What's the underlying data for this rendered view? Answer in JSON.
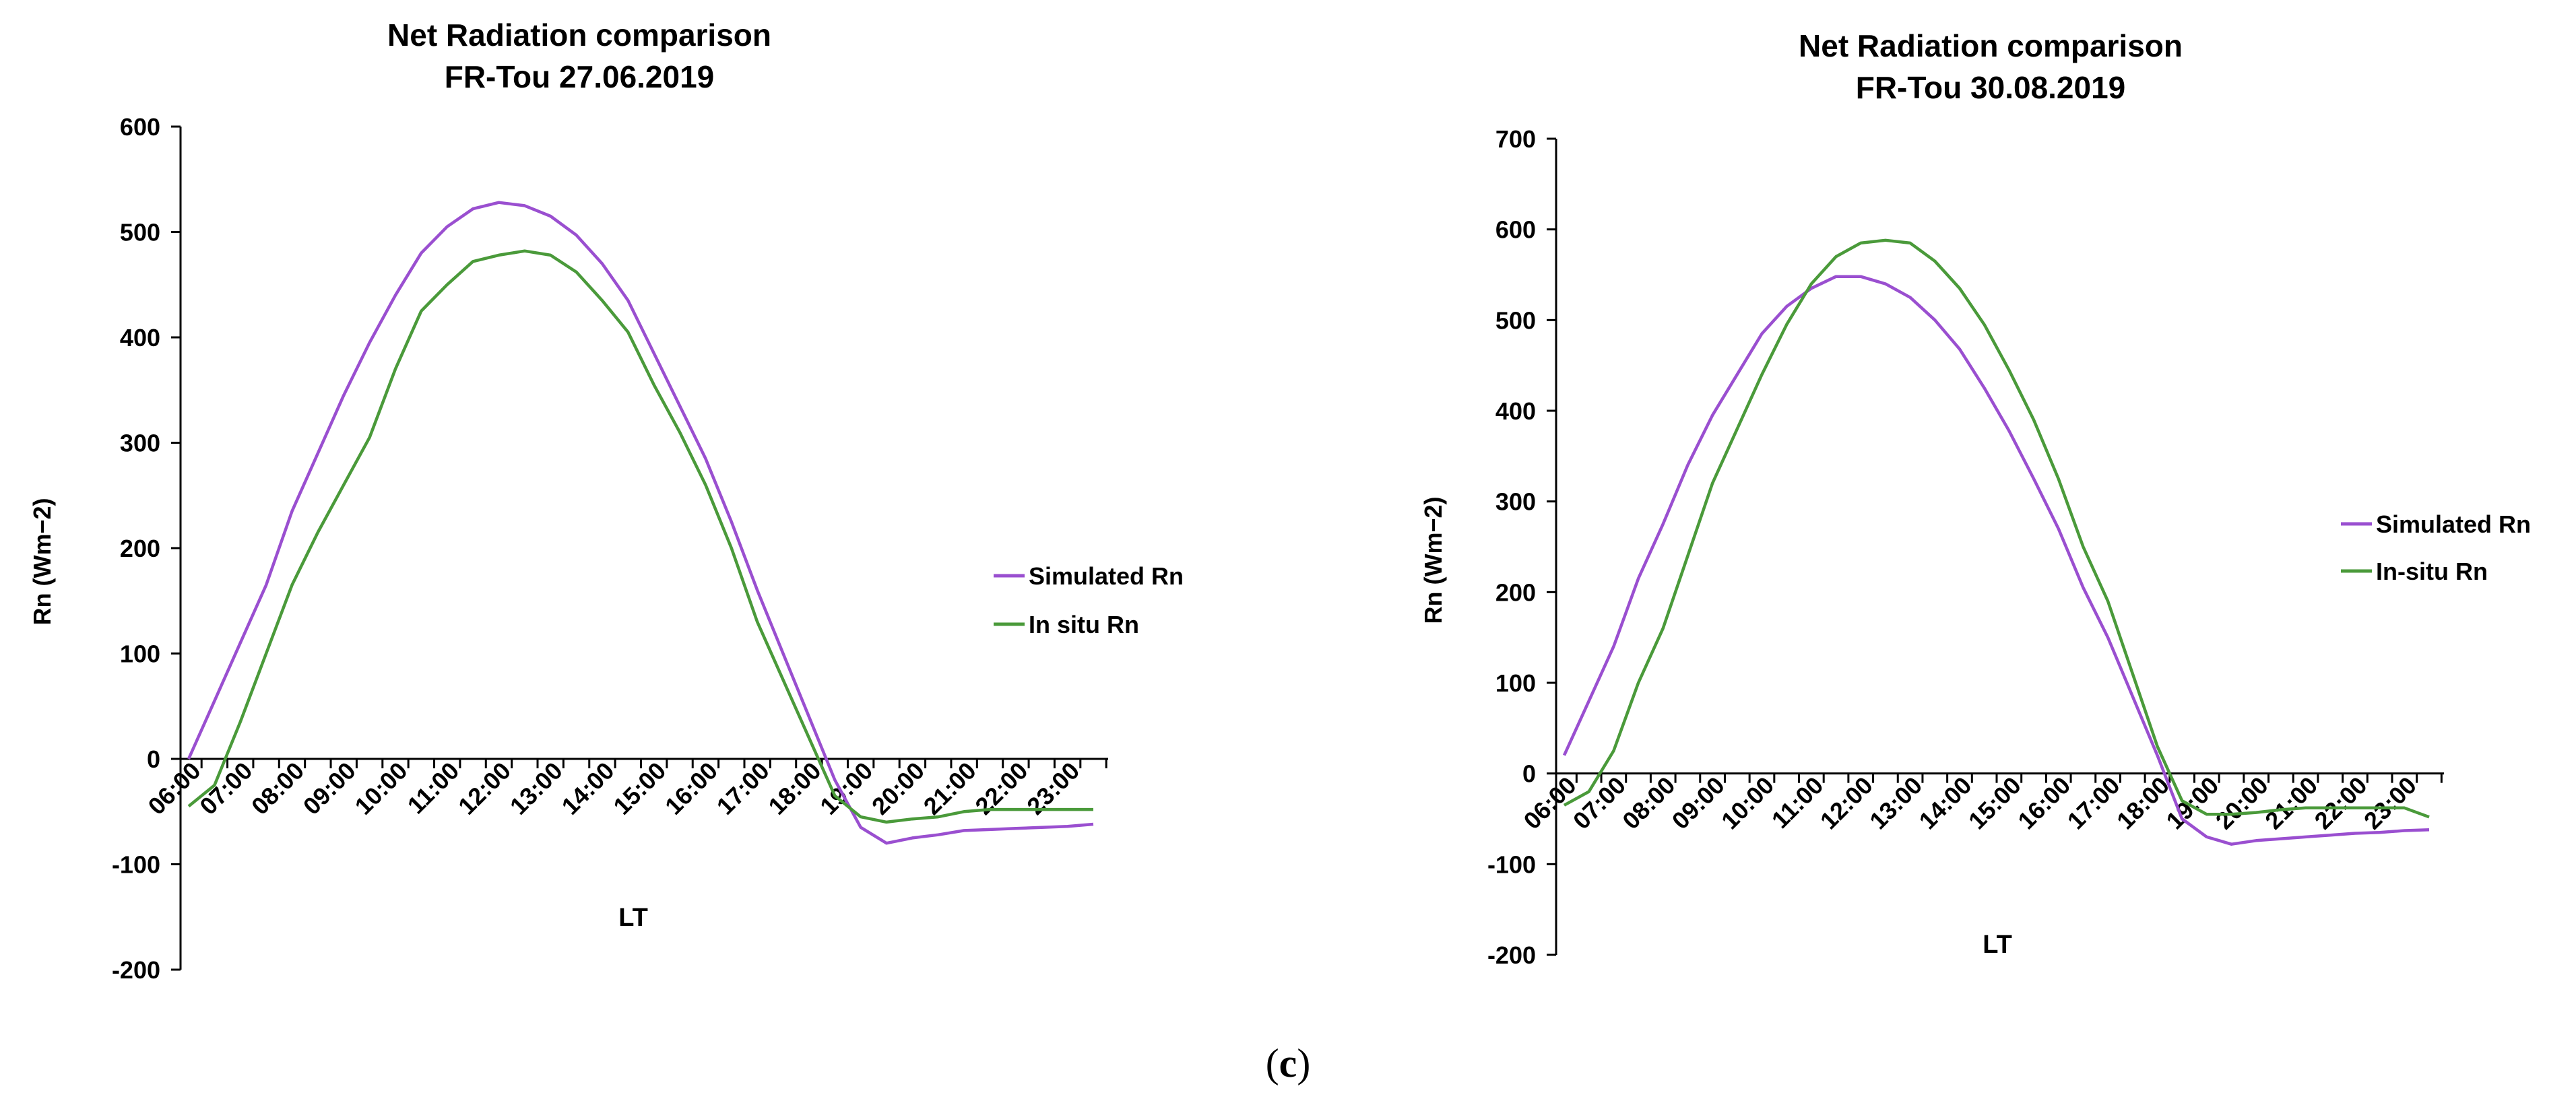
{
  "colors": {
    "simulated": "#9a4fd0",
    "insitu": "#4a9a3a",
    "axis": "#000000"
  },
  "chart_data": [
    {
      "type": "line",
      "title": "Net Radiation comparison",
      "subtitle": "FR-Tou 27.06.2019",
      "xlabel": "LT",
      "ylabel": "Rn (Wm−2)",
      "ylim": [
        -200,
        600
      ],
      "yticks": [
        -200,
        -100,
        0,
        100,
        200,
        300,
        400,
        500,
        600
      ],
      "categories": [
        "06:00",
        "07:00",
        "08:00",
        "09:00",
        "10:00",
        "11:00",
        "12:00",
        "13:00",
        "14:00",
        "15:00",
        "16:00",
        "17:00",
        "18:00",
        "19:00",
        "20:00",
        "21:00",
        "22:00",
        "23:00"
      ],
      "x": [
        6,
        6.5,
        7,
        7.5,
        8,
        8.5,
        9,
        9.5,
        10,
        10.5,
        11,
        11.5,
        12,
        12.5,
        13,
        13.5,
        14,
        14.5,
        15,
        15.5,
        16,
        16.5,
        17,
        17.5,
        18,
        18.5,
        19,
        19.5,
        20,
        20.5,
        21,
        21.5,
        22,
        22.5,
        23,
        23.5
      ],
      "series": [
        {
          "name": "Simulated Rn",
          "values": [
            0,
            55,
            110,
            165,
            235,
            290,
            345,
            395,
            440,
            480,
            505,
            522,
            528,
            525,
            515,
            497,
            470,
            435,
            385,
            335,
            285,
            225,
            160,
            100,
            40,
            -20,
            -65,
            -80,
            -75,
            -72,
            -68,
            -67,
            -66,
            -65,
            -64,
            -62
          ]
        },
        {
          "name": "In situ Rn",
          "values": [
            -45,
            -25,
            35,
            100,
            165,
            215,
            260,
            305,
            370,
            425,
            450,
            472,
            478,
            482,
            478,
            462,
            435,
            405,
            355,
            310,
            260,
            200,
            130,
            75,
            20,
            -35,
            -55,
            -60,
            -57,
            -55,
            -50,
            -48,
            -48,
            -48,
            -48,
            -48
          ]
        }
      ],
      "legend": [
        "Simulated Rn",
        "In situ Rn"
      ],
      "legend_position": "right"
    },
    {
      "type": "line",
      "title": "Net Radiation comparison",
      "subtitle": "FR-Tou 30.08.2019",
      "xlabel": "LT",
      "ylabel": "Rn (Wm−2)",
      "ylim": [
        -200,
        700
      ],
      "yticks": [
        -200,
        -100,
        0,
        100,
        200,
        300,
        400,
        500,
        600,
        700
      ],
      "categories": [
        "06:00",
        "07:00",
        "08:00",
        "09:00",
        "10:00",
        "11:00",
        "12:00",
        "13:00",
        "14:00",
        "15:00",
        "16:00",
        "17:00",
        "18:00",
        "19:00",
        "20:00",
        "21:00",
        "22:00",
        "23:00"
      ],
      "x": [
        6,
        6.5,
        7,
        7.5,
        8,
        8.5,
        9,
        9.5,
        10,
        10.5,
        11,
        11.5,
        12,
        12.5,
        13,
        13.5,
        14,
        14.5,
        15,
        15.5,
        16,
        16.5,
        17,
        17.5,
        18,
        18.5,
        19,
        19.5,
        20,
        20.5,
        21,
        21.5,
        22,
        22.5,
        23,
        23.5
      ],
      "series": [
        {
          "name": "Simulated Rn",
          "values": [
            20,
            80,
            140,
            215,
            275,
            340,
            395,
            440,
            485,
            515,
            535,
            548,
            548,
            540,
            525,
            500,
            468,
            425,
            378,
            325,
            270,
            205,
            150,
            85,
            20,
            -50,
            -70,
            -78,
            -74,
            -72,
            -70,
            -68,
            -66,
            -65,
            -63,
            -62
          ]
        },
        {
          "name": "In-situ Rn",
          "values": [
            -35,
            -20,
            25,
            100,
            160,
            240,
            320,
            380,
            440,
            495,
            540,
            570,
            585,
            588,
            585,
            565,
            535,
            495,
            445,
            390,
            325,
            250,
            190,
            110,
            30,
            -30,
            -45,
            -45,
            -43,
            -40,
            -38,
            -38,
            -38,
            -38,
            -38,
            -48
          ]
        }
      ],
      "legend": [
        "Simulated Rn",
        "In-situ Rn"
      ],
      "legend_position": "right"
    }
  ],
  "caption": "(c)"
}
